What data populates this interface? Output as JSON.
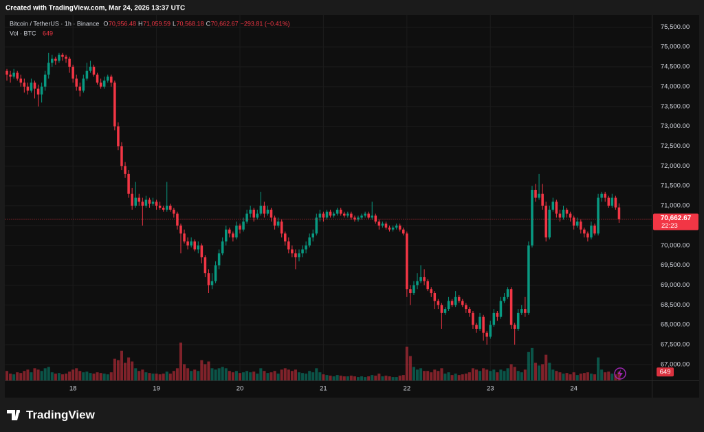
{
  "header": "Created with TradingView.com, Mar 24, 2026 13:37 UTC",
  "brand": "TradingView",
  "chart_data": {
    "type": "candlestick",
    "legend": {
      "symbol": "Bitcoin / TetherUS · 1h · Binance",
      "open_label": "O",
      "open": "70,956.48",
      "high_label": "H",
      "high": "71,059.59",
      "low_label": "L",
      "low": "70,568.18",
      "close_label": "C",
      "close": "70,662.67",
      "change": "−293.81 (−0.41%)",
      "volume_title": "Vol · BTC"
    },
    "last_price_label": "70,662.67",
    "countdown": "22:23",
    "up_color": "#089981",
    "down_color": "#f23645",
    "grid": true,
    "xlim": [
      -0.5,
      185.5
    ],
    "xticks": [
      {
        "value": 19,
        "label": "18"
      },
      {
        "value": 43,
        "label": "19"
      },
      {
        "value": 67,
        "label": "20"
      },
      {
        "value": 91,
        "label": "21"
      },
      {
        "value": 115,
        "label": "22"
      },
      {
        "value": 139,
        "label": "23"
      },
      {
        "value": 163,
        "label": "24"
      }
    ],
    "ylim": [
      66600,
      75800
    ],
    "yticks": [
      {
        "value": 75500,
        "label": "75,500.00"
      },
      {
        "value": 75000,
        "label": "75,000.00"
      },
      {
        "value": 74500,
        "label": "74,500.00"
      },
      {
        "value": 74000,
        "label": "74,000.00"
      },
      {
        "value": 73500,
        "label": "73,500.00"
      },
      {
        "value": 73000,
        "label": "73,000.00"
      },
      {
        "value": 72500,
        "label": "72,500.00"
      },
      {
        "value": 72000,
        "label": "72,000.00"
      },
      {
        "value": 71500,
        "label": "71,500.00"
      },
      {
        "value": 71000,
        "label": "71,000.00"
      },
      {
        "value": 70500,
        "label": "70,500.00"
      },
      {
        "value": 70000,
        "label": "70,000.00"
      },
      {
        "value": 69500,
        "label": "69,500.00"
      },
      {
        "value": 69000,
        "label": "69,000.00"
      },
      {
        "value": 68500,
        "label": "68,500.00"
      },
      {
        "value": 68000,
        "label": "68,000.00"
      },
      {
        "value": 67500,
        "label": "67,500.00"
      },
      {
        "value": 67000,
        "label": "67,000.00"
      }
    ],
    "candle_fields": [
      "open",
      "high",
      "low",
      "close",
      "volume"
    ],
    "candles": [
      [
        74400,
        74450,
        74150,
        74300,
        700
      ],
      [
        74300,
        74400,
        74100,
        74250,
        500
      ],
      [
        74250,
        74450,
        74200,
        74350,
        450
      ],
      [
        74350,
        74400,
        74150,
        74200,
        600
      ],
      [
        74200,
        74300,
        74000,
        74100,
        550
      ],
      [
        74100,
        74200,
        73850,
        74000,
        700
      ],
      [
        74000,
        74100,
        73800,
        73900,
        800
      ],
      [
        73900,
        74200,
        73850,
        74100,
        600
      ],
      [
        74100,
        74150,
        73700,
        73950,
        900
      ],
      [
        73950,
        74050,
        73500,
        73800,
        800
      ],
      [
        73800,
        74100,
        73600,
        74000,
        700
      ],
      [
        74000,
        74400,
        73900,
        74300,
        900
      ],
      [
        74300,
        74850,
        74200,
        74600,
        1000
      ],
      [
        74600,
        74800,
        74500,
        74700,
        600
      ],
      [
        74700,
        74750,
        74550,
        74650,
        500
      ],
      [
        74650,
        74850,
        74600,
        74800,
        550
      ],
      [
        74800,
        74850,
        74650,
        74750,
        450
      ],
      [
        74750,
        74800,
        74600,
        74700,
        500
      ],
      [
        74700,
        74750,
        74350,
        74500,
        650
      ],
      [
        74500,
        74550,
        74100,
        74200,
        800
      ],
      [
        74200,
        74300,
        73900,
        74000,
        900
      ],
      [
        74000,
        74100,
        73750,
        73900,
        700
      ],
      [
        73900,
        74300,
        73850,
        74200,
        600
      ],
      [
        74200,
        74600,
        74150,
        74400,
        650
      ],
      [
        74400,
        74650,
        74350,
        74500,
        550
      ],
      [
        74500,
        74550,
        74250,
        74300,
        500
      ],
      [
        74300,
        74350,
        74050,
        74100,
        600
      ],
      [
        74100,
        74200,
        73950,
        74000,
        550
      ],
      [
        74000,
        74250,
        73950,
        74150,
        500
      ],
      [
        74150,
        74300,
        74100,
        74250,
        450
      ],
      [
        74250,
        74300,
        74000,
        74100,
        600
      ],
      [
        74100,
        74150,
        72900,
        73000,
        1600
      ],
      [
        73000,
        73100,
        72400,
        72500,
        1500
      ],
      [
        72500,
        72600,
        71900,
        72000,
        2200
      ],
      [
        72000,
        72100,
        71700,
        71800,
        1300
      ],
      [
        71800,
        71900,
        71200,
        71300,
        1700
      ],
      [
        71300,
        71450,
        70900,
        71000,
        1400
      ],
      [
        71000,
        71600,
        70950,
        71200,
        900
      ],
      [
        71200,
        71300,
        71000,
        71100,
        700
      ],
      [
        71100,
        71200,
        70500,
        71000,
        800
      ],
      [
        71000,
        71250,
        70950,
        71150,
        600
      ],
      [
        71150,
        71200,
        70950,
        71050,
        550
      ],
      [
        71050,
        71200,
        71000,
        71100,
        500
      ],
      [
        71100,
        71150,
        70900,
        71000,
        500
      ],
      [
        71000,
        71100,
        70900,
        70950,
        450
      ],
      [
        70950,
        71000,
        70850,
        70900,
        500
      ],
      [
        70900,
        71600,
        70850,
        71000,
        650
      ],
      [
        71000,
        71050,
        70850,
        70900,
        500
      ],
      [
        70900,
        70950,
        70700,
        70800,
        700
      ],
      [
        70800,
        70850,
        70400,
        70500,
        900
      ],
      [
        70500,
        70550,
        69800,
        70300,
        2800
      ],
      [
        70300,
        70400,
        70050,
        70100,
        1200
      ],
      [
        70100,
        70200,
        69900,
        70000,
        900
      ],
      [
        70000,
        70200,
        69950,
        70100,
        700
      ],
      [
        70100,
        70150,
        69850,
        69900,
        800
      ],
      [
        69900,
        70100,
        69800,
        70000,
        700
      ],
      [
        70000,
        70050,
        69550,
        69700,
        1500
      ],
      [
        69700,
        69750,
        69200,
        69300,
        1200
      ],
      [
        69300,
        69400,
        68800,
        69000,
        1400
      ],
      [
        69000,
        69300,
        68900,
        69100,
        900
      ],
      [
        69100,
        69600,
        69050,
        69500,
        800
      ],
      [
        69500,
        69900,
        69400,
        69800,
        900
      ],
      [
        69800,
        70200,
        69750,
        70100,
        1000
      ],
      [
        70100,
        70500,
        70000,
        70400,
        900
      ],
      [
        70400,
        70450,
        70200,
        70300,
        700
      ],
      [
        70300,
        70350,
        70100,
        70200,
        600
      ],
      [
        70200,
        70600,
        70150,
        70500,
        700
      ],
      [
        70500,
        70550,
        70300,
        70400,
        550
      ],
      [
        70400,
        70700,
        70350,
        70600,
        600
      ],
      [
        70600,
        70900,
        70550,
        70800,
        700
      ],
      [
        70800,
        71000,
        70700,
        70900,
        600
      ],
      [
        70900,
        70950,
        70600,
        70700,
        650
      ],
      [
        70700,
        70900,
        70650,
        70800,
        500
      ],
      [
        70800,
        71350,
        70750,
        71000,
        900
      ],
      [
        71000,
        71100,
        70700,
        70800,
        700
      ],
      [
        70800,
        71000,
        70750,
        70900,
        550
      ],
      [
        70900,
        70950,
        70600,
        70700,
        600
      ],
      [
        70700,
        70750,
        70400,
        70500,
        700
      ],
      [
        70500,
        70700,
        70450,
        70600,
        500
      ],
      [
        70600,
        70650,
        70200,
        70300,
        800
      ],
      [
        70300,
        70350,
        70000,
        70100,
        900
      ],
      [
        70100,
        70200,
        69800,
        69900,
        800
      ],
      [
        69900,
        70000,
        69700,
        69800,
        700
      ],
      [
        69800,
        69900,
        69400,
        69700,
        800
      ],
      [
        69700,
        69900,
        69600,
        69800,
        600
      ],
      [
        69800,
        70000,
        69700,
        69900,
        550
      ],
      [
        69900,
        70100,
        69800,
        70000,
        500
      ],
      [
        70000,
        70300,
        69950,
        70200,
        700
      ],
      [
        70200,
        70400,
        70100,
        70300,
        600
      ],
      [
        70300,
        70800,
        70250,
        70700,
        900
      ],
      [
        70700,
        70900,
        70600,
        70800,
        600
      ],
      [
        70800,
        70850,
        70600,
        70700,
        450
      ],
      [
        70700,
        70900,
        70650,
        70850,
        400
      ],
      [
        70850,
        70900,
        70700,
        70750,
        350
      ],
      [
        70750,
        70850,
        70700,
        70800,
        300
      ],
      [
        70800,
        70950,
        70750,
        70900,
        400
      ],
      [
        70900,
        70950,
        70750,
        70800,
        350
      ],
      [
        70800,
        70850,
        70700,
        70750,
        300
      ],
      [
        70750,
        70850,
        70700,
        70800,
        300
      ],
      [
        70800,
        70850,
        70650,
        70700,
        350
      ],
      [
        70700,
        70750,
        70600,
        70650,
        300
      ],
      [
        70650,
        70750,
        70600,
        70700,
        250
      ],
      [
        70700,
        70800,
        70650,
        70750,
        300
      ],
      [
        70750,
        70850,
        70700,
        70800,
        250
      ],
      [
        70800,
        70850,
        70650,
        70700,
        300
      ],
      [
        70700,
        71100,
        70650,
        70750,
        400
      ],
      [
        70750,
        70800,
        70550,
        70600,
        350
      ],
      [
        70600,
        70650,
        70400,
        70500,
        500
      ],
      [
        70500,
        70600,
        70450,
        70550,
        300
      ],
      [
        70550,
        70600,
        70400,
        70450,
        350
      ],
      [
        70450,
        70500,
        70350,
        70400,
        300
      ],
      [
        70400,
        70500,
        70350,
        70450,
        250
      ],
      [
        70450,
        70550,
        70400,
        70500,
        250
      ],
      [
        70500,
        70550,
        70350,
        70400,
        350
      ],
      [
        70400,
        70450,
        70250,
        70300,
        400
      ],
      [
        70300,
        70350,
        68700,
        68900,
        2500
      ],
      [
        68900,
        69000,
        68500,
        68800,
        1800
      ],
      [
        68800,
        69100,
        68750,
        69000,
        1000
      ],
      [
        69000,
        69300,
        68900,
        69100,
        800
      ],
      [
        69100,
        69500,
        69050,
        69200,
        900
      ],
      [
        69200,
        69400,
        69000,
        69100,
        700
      ],
      [
        69100,
        69150,
        68850,
        68900,
        700
      ],
      [
        68900,
        68950,
        68700,
        68800,
        600
      ],
      [
        68800,
        68850,
        68400,
        68600,
        800
      ],
      [
        68600,
        68650,
        68400,
        68500,
        700
      ],
      [
        68500,
        68550,
        67900,
        68300,
        900
      ],
      [
        68300,
        68450,
        68250,
        68400,
        500
      ],
      [
        68400,
        68700,
        68350,
        68600,
        600
      ],
      [
        68600,
        68650,
        68450,
        68500,
        400
      ],
      [
        68500,
        68850,
        68450,
        68700,
        500
      ],
      [
        68700,
        68750,
        68550,
        68600,
        400
      ],
      [
        68600,
        68650,
        68450,
        68500,
        450
      ],
      [
        68500,
        68550,
        68300,
        68400,
        500
      ],
      [
        68400,
        68450,
        68200,
        68300,
        600
      ],
      [
        68300,
        68350,
        67900,
        68000,
        900
      ],
      [
        68000,
        68050,
        67800,
        67900,
        800
      ],
      [
        67900,
        68300,
        67850,
        68200,
        700
      ],
      [
        68200,
        68250,
        67600,
        67800,
        900
      ],
      [
        67800,
        67850,
        67500,
        67700,
        800
      ],
      [
        67700,
        68100,
        67650,
        68000,
        700
      ],
      [
        68000,
        68400,
        67950,
        68300,
        800
      ],
      [
        68300,
        68350,
        68100,
        68200,
        600
      ],
      [
        68200,
        68700,
        68150,
        68600,
        800
      ],
      [
        68600,
        68800,
        68550,
        68700,
        700
      ],
      [
        68700,
        68950,
        68650,
        68900,
        900
      ],
      [
        68900,
        68950,
        67900,
        68000,
        1200
      ],
      [
        68000,
        68050,
        67500,
        67900,
        1000
      ],
      [
        67900,
        68400,
        67850,
        68300,
        700
      ],
      [
        68300,
        68500,
        68250,
        68400,
        600
      ],
      [
        68400,
        68700,
        68200,
        68300,
        800
      ],
      [
        68300,
        70100,
        68250,
        70000,
        2100
      ],
      [
        70000,
        71500,
        69950,
        71400,
        2400
      ],
      [
        71400,
        71550,
        71100,
        71200,
        1300
      ],
      [
        71200,
        71800,
        71150,
        71300,
        1100
      ],
      [
        71300,
        71550,
        70900,
        71000,
        1200
      ],
      [
        71000,
        71100,
        70100,
        70200,
        1900
      ],
      [
        70200,
        71000,
        70150,
        70900,
        1300
      ],
      [
        70900,
        71200,
        70850,
        71100,
        800
      ],
      [
        71100,
        71150,
        70700,
        70800,
        700
      ],
      [
        70800,
        70900,
        70600,
        70700,
        600
      ],
      [
        70700,
        71000,
        70650,
        70900,
        500
      ],
      [
        70900,
        70950,
        70700,
        70800,
        550
      ],
      [
        70800,
        70850,
        70600,
        70700,
        450
      ],
      [
        70700,
        70750,
        70400,
        70500,
        600
      ],
      [
        70500,
        70700,
        70450,
        70600,
        400
      ],
      [
        70600,
        70650,
        70300,
        70400,
        500
      ],
      [
        70400,
        70450,
        70200,
        70300,
        550
      ],
      [
        70300,
        70350,
        70100,
        70200,
        600
      ],
      [
        70200,
        70600,
        70150,
        70500,
        500
      ],
      [
        70500,
        70550,
        70250,
        70300,
        450
      ],
      [
        70300,
        71300,
        70250,
        71200,
        1700
      ],
      [
        71200,
        71350,
        71100,
        71300,
        800
      ],
      [
        71300,
        71350,
        71100,
        71200,
        600
      ],
      [
        71200,
        71250,
        70950,
        71000,
        650
      ],
      [
        71000,
        71300,
        70950,
        71200,
        500
      ],
      [
        71200,
        71250,
        70900,
        70956.48,
        450
      ],
      [
        70956.48,
        71059.59,
        70568.18,
        70662.67,
        649
      ]
    ]
  }
}
